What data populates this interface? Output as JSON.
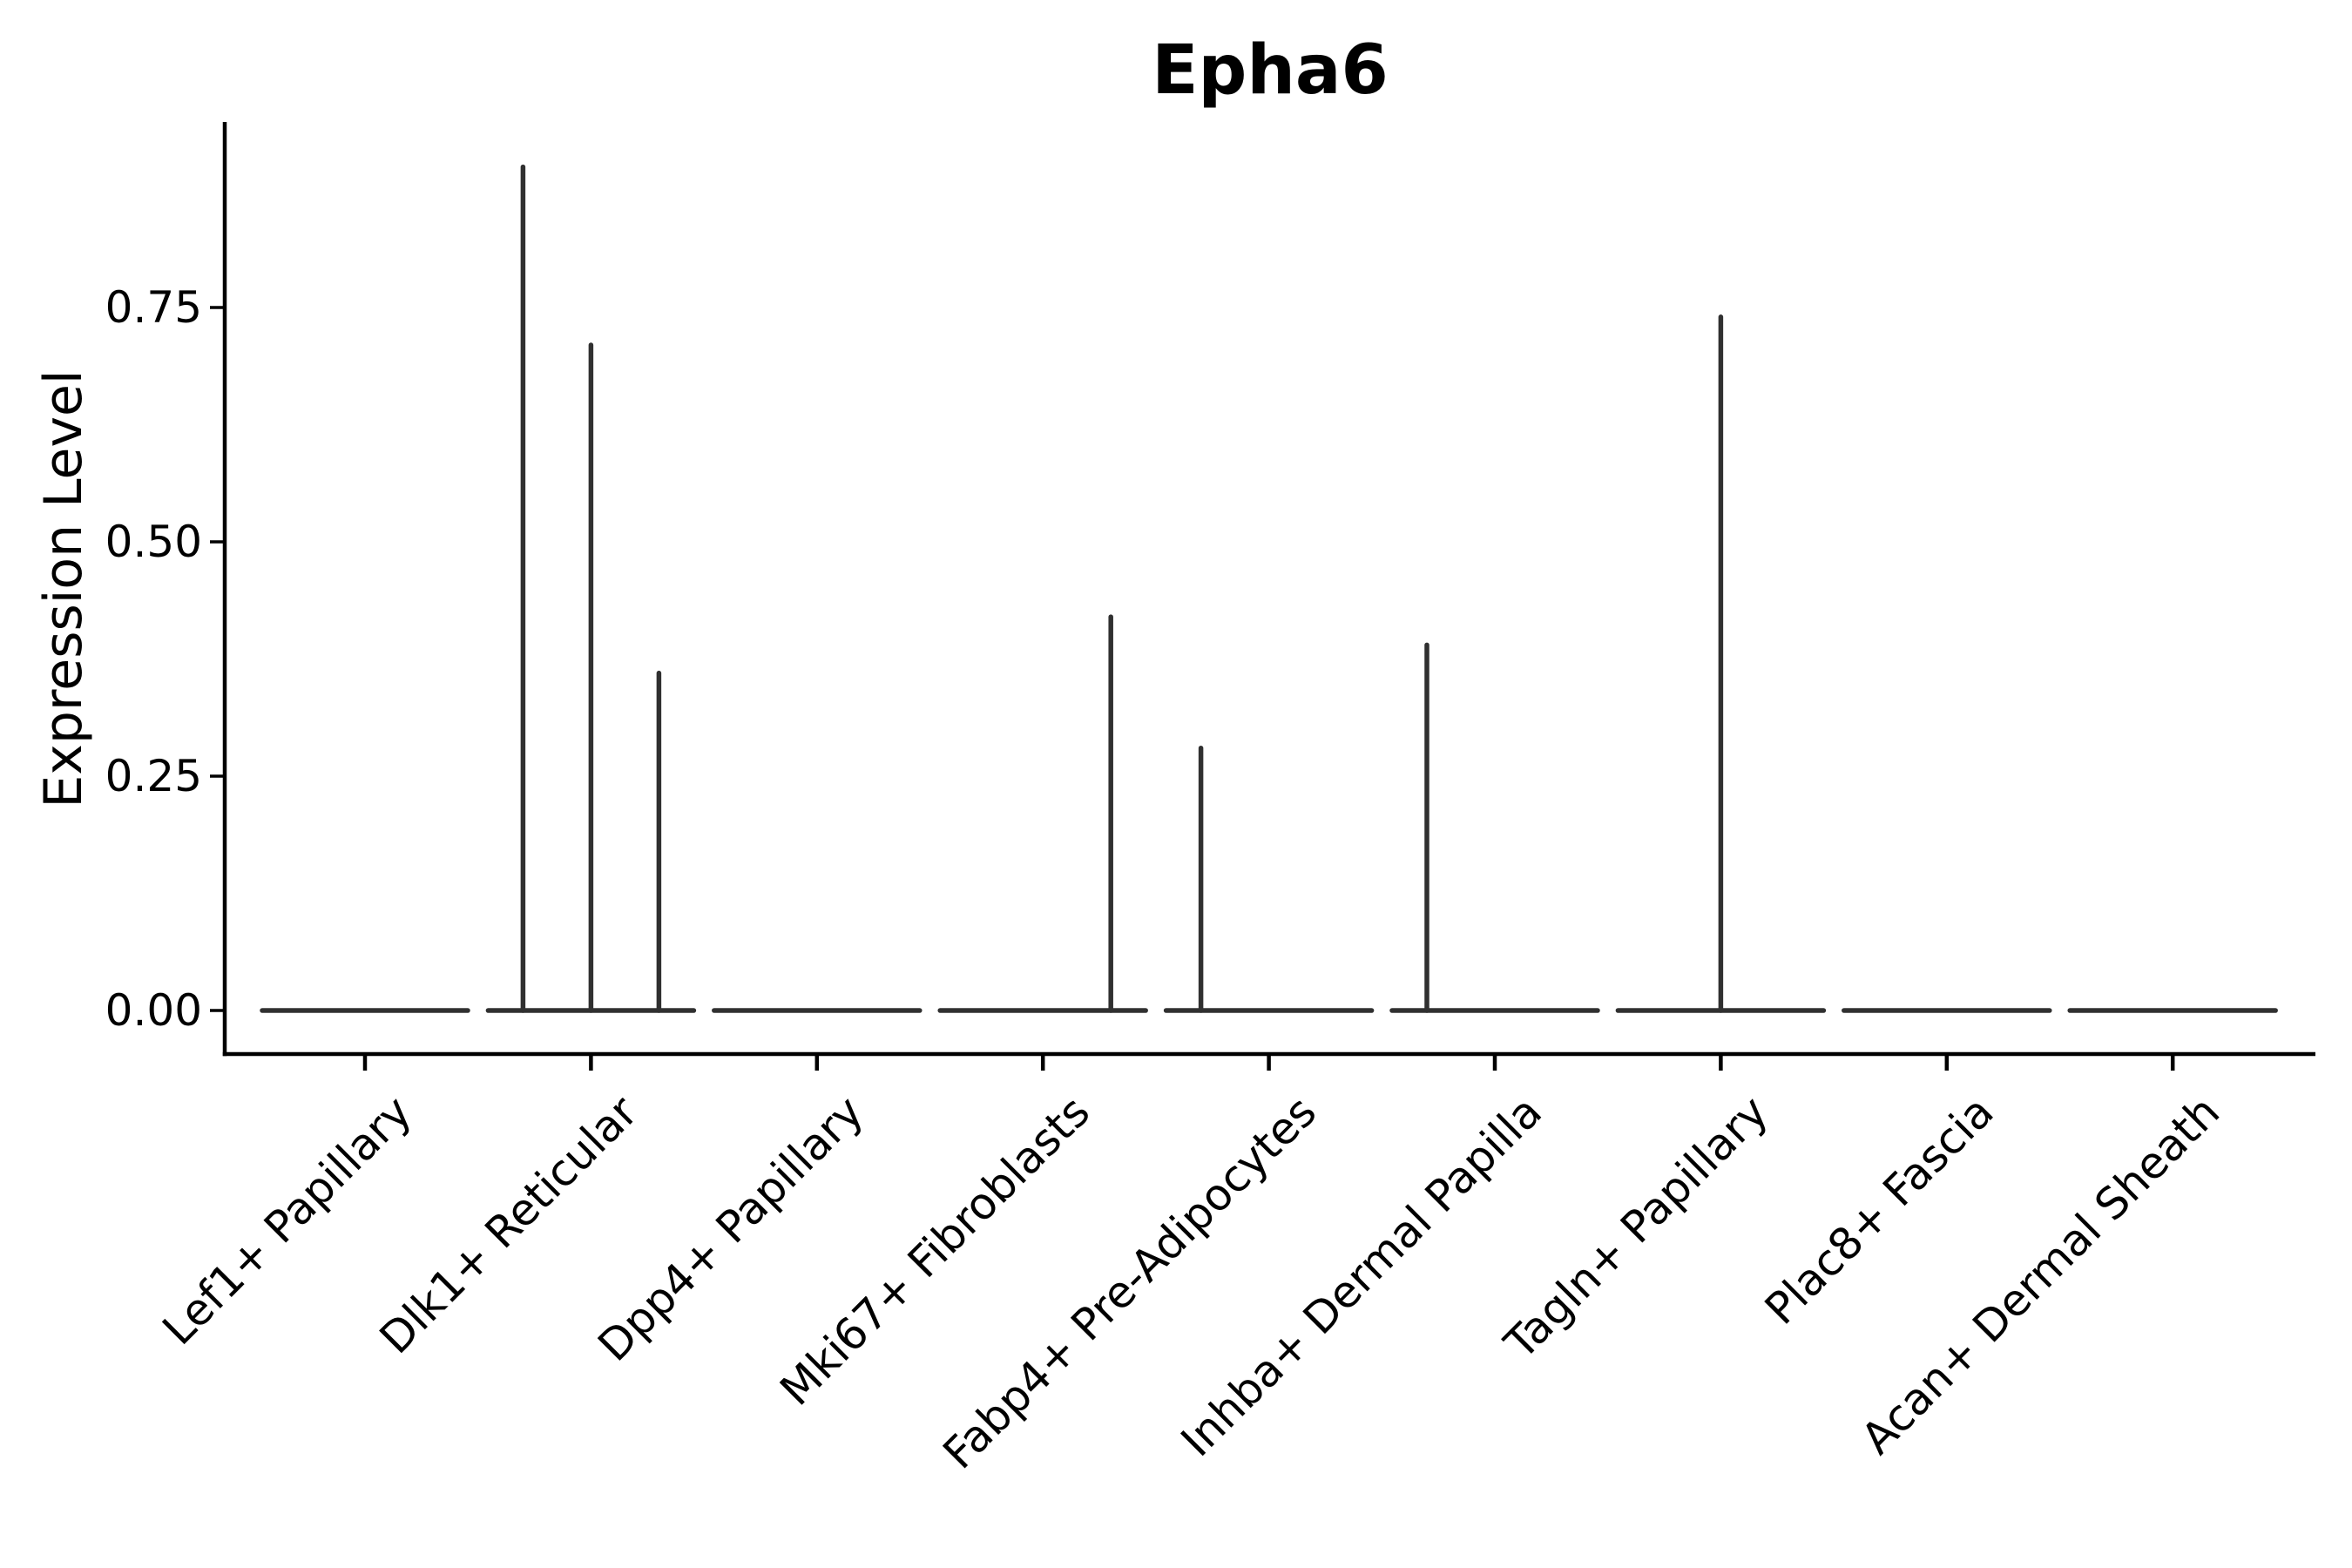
{
  "chart_data": {
    "type": "violin",
    "title": "Epha6",
    "xlabel": "",
    "ylabel": "Expression Level",
    "categories": [
      "Lef1+ Papillary",
      "Dlk1+ Reticular",
      "Dpp4+ Papillary",
      "Mki67+ Fibroblasts",
      "Fabp4+ Pre-Adipocytes",
      "Inhba+ Dermal Papilla",
      "Tagln+ Papillary",
      "Plac8+ Fascia",
      "Acan+ Dermal Sheath"
    ],
    "ylim": [
      -0.045,
      0.945
    ],
    "yticks": {
      "values": [
        0,
        0.25,
        0.5,
        0.75
      ],
      "labels": [
        "0.00",
        "0.25",
        "0.50",
        "0.75"
      ]
    },
    "grid": false,
    "legend": null,
    "baseline_value": 0,
    "violins": [
      {
        "category": "Lef1+ Papillary",
        "spikes": []
      },
      {
        "category": "Dlk1+ Reticular",
        "spikes": [
          {
            "slot": "left",
            "max": 0.9
          },
          {
            "slot": "center",
            "max": 0.71
          },
          {
            "slot": "right",
            "max": 0.36
          }
        ]
      },
      {
        "category": "Dpp4+ Papillary",
        "spikes": []
      },
      {
        "category": "Mki67+ Fibroblasts",
        "spikes": [
          {
            "slot": "right",
            "max": 0.42
          }
        ]
      },
      {
        "category": "Fabp4+ Pre-Adipocytes",
        "spikes": [
          {
            "slot": "left",
            "max": 0.28
          }
        ]
      },
      {
        "category": "Inhba+ Dermal Papilla",
        "spikes": [
          {
            "slot": "left",
            "max": 0.39
          }
        ]
      },
      {
        "category": "Tagln+ Papillary",
        "spikes": [
          {
            "slot": "center",
            "max": 0.74
          }
        ]
      },
      {
        "category": "Plac8+ Fascia",
        "spikes": []
      },
      {
        "category": "Acan+ Dermal Sheath",
        "spikes": []
      }
    ],
    "colors": {
      "violin_stroke": "#303030",
      "axis": "#000000",
      "text": "#000000",
      "background": "#ffffff"
    }
  }
}
